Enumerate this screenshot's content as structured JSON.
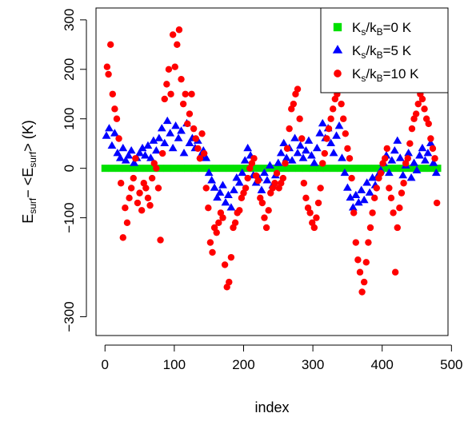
{
  "chart_data": {
    "type": "scatter",
    "title": "",
    "xlabel": "index",
    "ylabel": {
      "main": "E",
      "sub1": "surf",
      "mid": "− <E",
      "sub2": "surf",
      "end": "> (K)"
    },
    "xlim": [
      -13,
      495
    ],
    "ylim": [
      -338,
      324
    ],
    "xticks": [
      0,
      100,
      200,
      300,
      400,
      500
    ],
    "yticks": [
      -300,
      -100,
      0,
      100,
      200,
      300
    ],
    "ytick_labels": [
      "−300",
      "−100",
      "0",
      "100",
      "200",
      "300"
    ],
    "grid": false,
    "legend_position": "top-right",
    "legend": [
      {
        "pre": "K",
        "s1": "s",
        "mid": "/k",
        "s2": "B",
        "post": "=0 K",
        "marker": "square",
        "color": "#00e000"
      },
      {
        "pre": "K",
        "s1": "s",
        "mid": "/k",
        "s2": "B",
        "post": "=5 K",
        "marker": "triangle",
        "color": "#0000ff"
      },
      {
        "pre": "K",
        "s1": "s",
        "mid": "/k",
        "s2": "B",
        "post": "=10 K",
        "marker": "circle",
        "color": "#ff0000"
      }
    ],
    "series": [
      {
        "name": "Ks/kB=0 K",
        "marker": "square",
        "color": "#00e000",
        "x": [
          0,
          10,
          20,
          30,
          40,
          50,
          60,
          70,
          80,
          90,
          100,
          110,
          120,
          130,
          140,
          150,
          160,
          170,
          180,
          190,
          200,
          210,
          220,
          230,
          240,
          250,
          260,
          270,
          280,
          290,
          300,
          310,
          320,
          330,
          340,
          350,
          360,
          370,
          380,
          390,
          400,
          410,
          420,
          430,
          440,
          450,
          460,
          470,
          480
        ],
        "y": [
          0,
          0,
          0,
          0,
          0,
          0,
          0,
          0,
          0,
          0,
          0,
          0,
          0,
          0,
          0,
          0,
          0,
          0,
          0,
          0,
          0,
          0,
          0,
          0,
          0,
          0,
          0,
          0,
          0,
          0,
          0,
          0,
          0,
          0,
          0,
          0,
          0,
          0,
          0,
          0,
          0,
          0,
          0,
          0,
          0,
          0,
          0,
          0,
          0
        ]
      },
      {
        "name": "Ks/kB=5 K",
        "marker": "triangle",
        "color": "#0000ff",
        "x": [
          2,
          6,
          10,
          14,
          18,
          22,
          26,
          30,
          34,
          38,
          42,
          46,
          50,
          54,
          58,
          62,
          66,
          70,
          74,
          78,
          82,
          86,
          90,
          94,
          98,
          102,
          106,
          110,
          114,
          118,
          122,
          126,
          130,
          134,
          138,
          142,
          146,
          150,
          154,
          158,
          162,
          166,
          170,
          174,
          178,
          182,
          186,
          190,
          194,
          198,
          202,
          206,
          210,
          214,
          218,
          222,
          226,
          230,
          234,
          238,
          242,
          246,
          250,
          254,
          258,
          262,
          266,
          270,
          274,
          278,
          282,
          286,
          290,
          294,
          298,
          302,
          306,
          310,
          314,
          318,
          322,
          326,
          330,
          334,
          338,
          342,
          346,
          350,
          354,
          358,
          362,
          366,
          370,
          374,
          378,
          382,
          386,
          390,
          394,
          398,
          402,
          406,
          410,
          414,
          418,
          422,
          426,
          430,
          434,
          438,
          442,
          446,
          450,
          454,
          458,
          462,
          466,
          470,
          474,
          478
        ],
        "y": [
          65,
          80,
          45,
          70,
          30,
          20,
          40,
          15,
          25,
          35,
          10,
          20,
          30,
          40,
          25,
          45,
          20,
          55,
          35,
          60,
          80,
          50,
          95,
          70,
          40,
          85,
          60,
          75,
          30,
          90,
          50,
          60,
          40,
          55,
          25,
          35,
          20,
          -10,
          -25,
          -40,
          -60,
          -50,
          -35,
          -70,
          -55,
          -80,
          -45,
          -20,
          -30,
          -10,
          15,
          40,
          25,
          -15,
          -30,
          -20,
          -45,
          -10,
          -25,
          5,
          -35,
          -15,
          10,
          30,
          50,
          20,
          40,
          15,
          60,
          30,
          45,
          20,
          35,
          55,
          25,
          10,
          40,
          70,
          90,
          60,
          80,
          50,
          30,
          65,
          85,
          20,
          -10,
          -40,
          -60,
          -80,
          -55,
          -70,
          -45,
          -65,
          -30,
          -50,
          -20,
          -35,
          -15,
          -5,
          10,
          25,
          -10,
          15,
          35,
          55,
          20,
          -15,
          5,
          30,
          -20,
          10,
          -5,
          25,
          40,
          15,
          30,
          50,
          10,
          -10
        ]
      },
      {
        "name": "Ks/kB=10 K",
        "marker": "circle",
        "color": "#ff0000",
        "x": [
          3,
          5,
          8,
          11,
          14,
          17,
          20,
          23,
          26,
          29,
          32,
          35,
          38,
          41,
          44,
          47,
          50,
          53,
          56,
          59,
          62,
          65,
          68,
          71,
          74,
          77,
          80,
          83,
          86,
          89,
          92,
          95,
          98,
          101,
          104,
          107,
          110,
          113,
          116,
          119,
          122,
          125,
          128,
          131,
          134,
          137,
          140,
          143,
          146,
          149,
          152,
          155,
          158,
          161,
          164,
          167,
          170,
          173,
          176,
          179,
          182,
          185,
          188,
          191,
          194,
          197,
          200,
          203,
          206,
          209,
          212,
          215,
          218,
          221,
          224,
          227,
          230,
          233,
          236,
          239,
          242,
          245,
          248,
          251,
          254,
          257,
          260,
          263,
          266,
          269,
          272,
          275,
          278,
          281,
          284,
          287,
          290,
          293,
          296,
          299,
          302,
          305,
          308,
          311,
          314,
          317,
          320,
          323,
          326,
          329,
          332,
          335,
          338,
          341,
          344,
          347,
          350,
          353,
          356,
          359,
          362,
          365,
          368,
          371,
          374,
          377,
          380,
          383,
          386,
          389,
          392,
          395,
          398,
          401,
          404,
          407,
          410,
          413,
          416,
          419,
          422,
          425,
          428,
          431,
          434,
          437,
          440,
          443,
          446,
          449,
          452,
          455,
          458,
          461,
          464,
          467,
          470,
          473,
          476,
          479
        ],
        "y": [
          205,
          190,
          250,
          150,
          120,
          100,
          60,
          -30,
          -140,
          -80,
          -110,
          -60,
          -40,
          -20,
          20,
          -70,
          -50,
          -85,
          -30,
          -40,
          -60,
          -75,
          -20,
          10,
          0,
          -40,
          -145,
          30,
          140,
          170,
          200,
          150,
          270,
          205,
          250,
          280,
          180,
          130,
          150,
          90,
          110,
          150,
          80,
          60,
          40,
          20,
          70,
          30,
          -40,
          -80,
          -150,
          -170,
          -120,
          -130,
          -110,
          -90,
          -100,
          -195,
          -240,
          -230,
          -180,
          -120,
          -110,
          -90,
          -85,
          -60,
          -50,
          -40,
          -20,
          0,
          10,
          20,
          -15,
          -25,
          -60,
          -70,
          -100,
          -120,
          -85,
          -50,
          -40,
          -30,
          -10,
          -40,
          -30,
          -20,
          10,
          40,
          80,
          120,
          130,
          150,
          160,
          100,
          60,
          -30,
          -60,
          -80,
          -90,
          -110,
          -120,
          -100,
          -70,
          -40,
          10,
          30,
          60,
          80,
          100,
          120,
          140,
          150,
          170,
          130,
          100,
          70,
          40,
          20,
          -20,
          -90,
          -150,
          -185,
          -210,
          -250,
          -230,
          -190,
          -150,
          -120,
          -90,
          -60,
          -40,
          -20,
          -10,
          10,
          20,
          40,
          -40,
          -60,
          -90,
          -210,
          -120,
          -80,
          -50,
          -30,
          10,
          20,
          50,
          80,
          100,
          110,
          130,
          150,
          140,
          120,
          100,
          90,
          60,
          40,
          20,
          -70
        ]
      }
    ]
  }
}
